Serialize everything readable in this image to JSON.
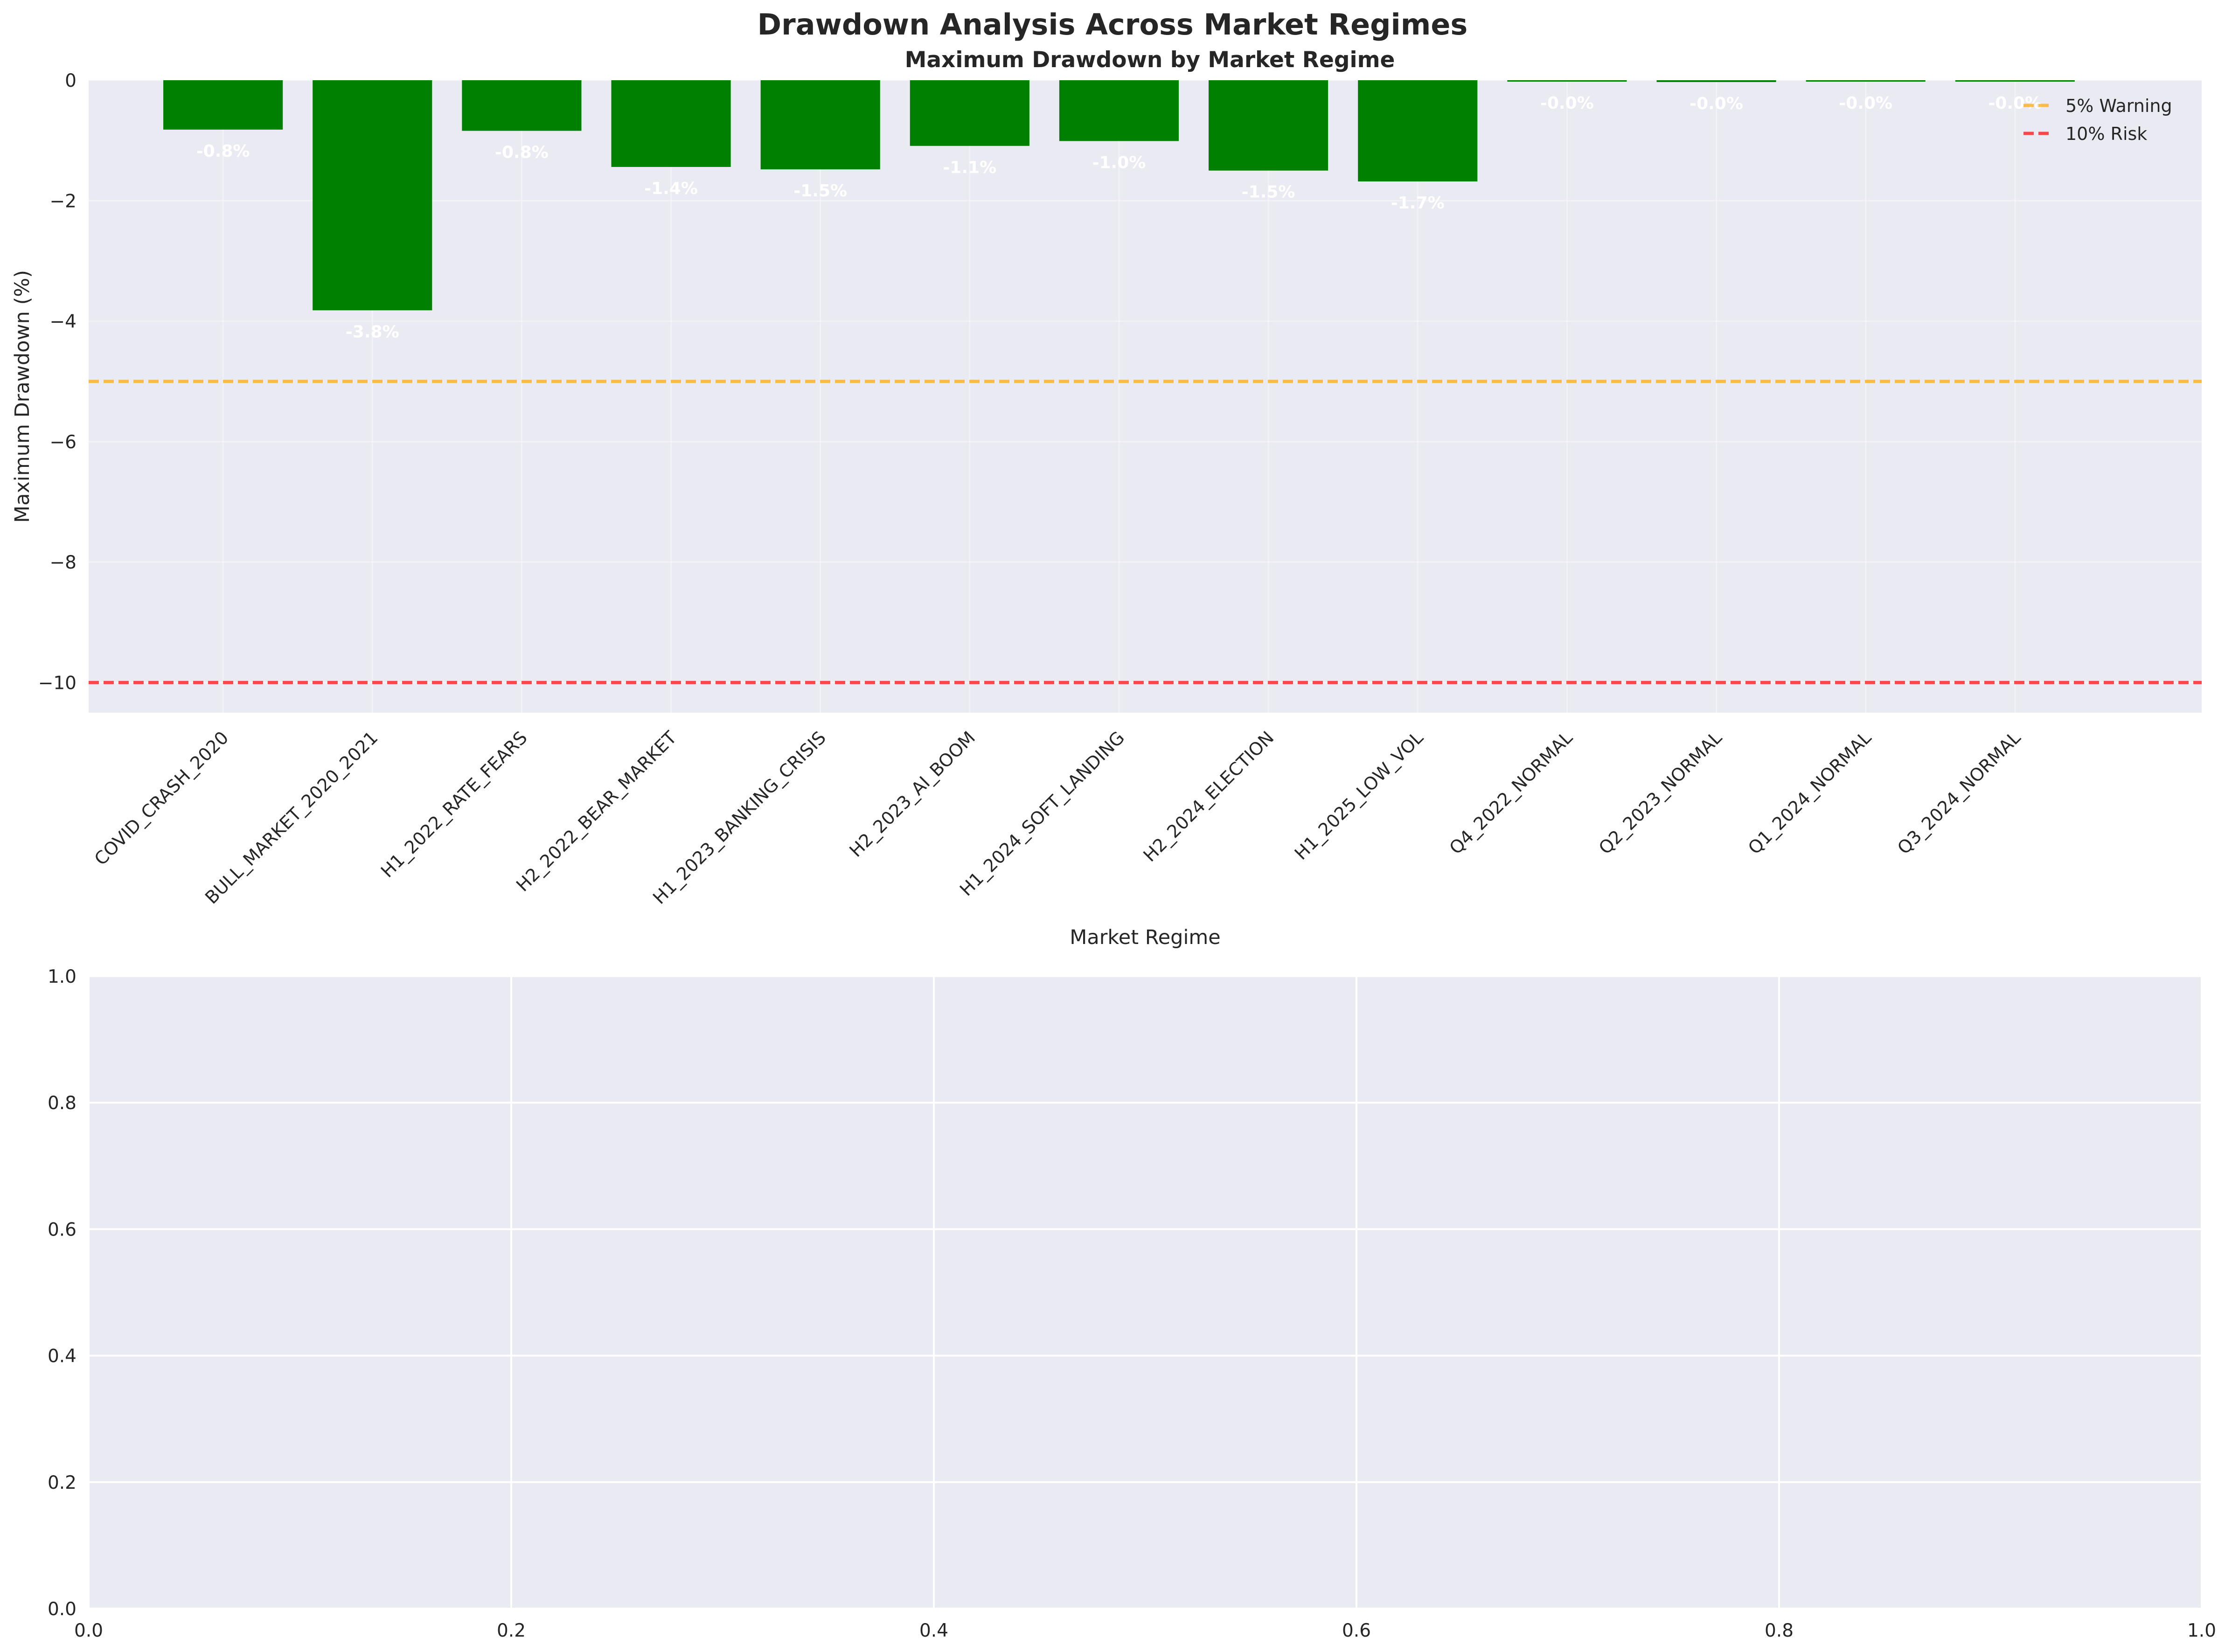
{
  "figure": {
    "title": "Drawdown Analysis Across Market Regimes"
  },
  "chart_data": [
    {
      "type": "bar",
      "title": "Maximum Drawdown by Market Regime",
      "xlabel": "Market Regime",
      "ylabel": "Maximum Drawdown (%)",
      "ylim": [
        -10.5,
        0
      ],
      "yticks": [
        0,
        -2,
        -4,
        -6,
        -8,
        -10
      ],
      "ytick_labels": [
        "0",
        "−2",
        "−4",
        "−6",
        "−8",
        "−10"
      ],
      "grid": true,
      "bar_color": "#008000",
      "categories": [
        "COVID_CRASH_2020",
        "BULL_MARKET_2020_2021",
        "H1_2022_RATE_FEARS",
        "H2_2022_BEAR_MARKET",
        "H1_2023_BANKING_CRISIS",
        "H2_2023_AI_BOOM",
        "H1_2024_SOFT_LANDING",
        "H2_2024_ELECTION",
        "H1_2025_LOW_VOL",
        "Q4_2022_NORMAL",
        "Q2_2023_NORMAL",
        "Q1_2024_NORMAL",
        "Q3_2024_NORMAL"
      ],
      "values": [
        -0.82,
        -3.82,
        -0.84,
        -1.44,
        -1.48,
        -1.09,
        -1.01,
        -1.5,
        -1.68,
        -0.02,
        -0.03,
        -0.01,
        -0.01
      ],
      "data_labels": [
        "-0.8%",
        "-3.8%",
        "-0.8%",
        "-1.4%",
        "-1.5%",
        "-1.1%",
        "-1.0%",
        "-1.5%",
        "-1.7%",
        "-0.0%",
        "-0.0%",
        "-0.0%",
        "-0.0%"
      ],
      "reference_lines": [
        {
          "name": "5% Warning",
          "y": -5,
          "color": "#ffa500"
        },
        {
          "name": "10% Risk",
          "y": -10,
          "color": "#ff0000"
        }
      ],
      "legend": {
        "placement": "top-right",
        "entries": [
          "5% Warning",
          "10% Risk"
        ]
      }
    },
    {
      "type": "scatter",
      "title": "",
      "xlabel": "",
      "ylabel": "",
      "xlim": [
        0,
        1
      ],
      "ylim": [
        0,
        1
      ],
      "xticks": [
        0,
        0.2,
        0.4,
        0.6,
        0.8,
        1
      ],
      "xtick_labels": [
        "0.0",
        "0.2",
        "0.4",
        "0.6",
        "0.8",
        "1.0"
      ],
      "yticks": [
        0,
        0.2,
        0.4,
        0.6,
        0.8,
        1
      ],
      "ytick_labels": [
        "0.0",
        "0.2",
        "0.4",
        "0.6",
        "0.8",
        "1.0"
      ],
      "grid": true,
      "series": []
    }
  ],
  "colors": {
    "axes_bg": "#eaeaf2",
    "grid": "#ffffff",
    "text": "#262626",
    "bar_label": "#ffffff"
  }
}
